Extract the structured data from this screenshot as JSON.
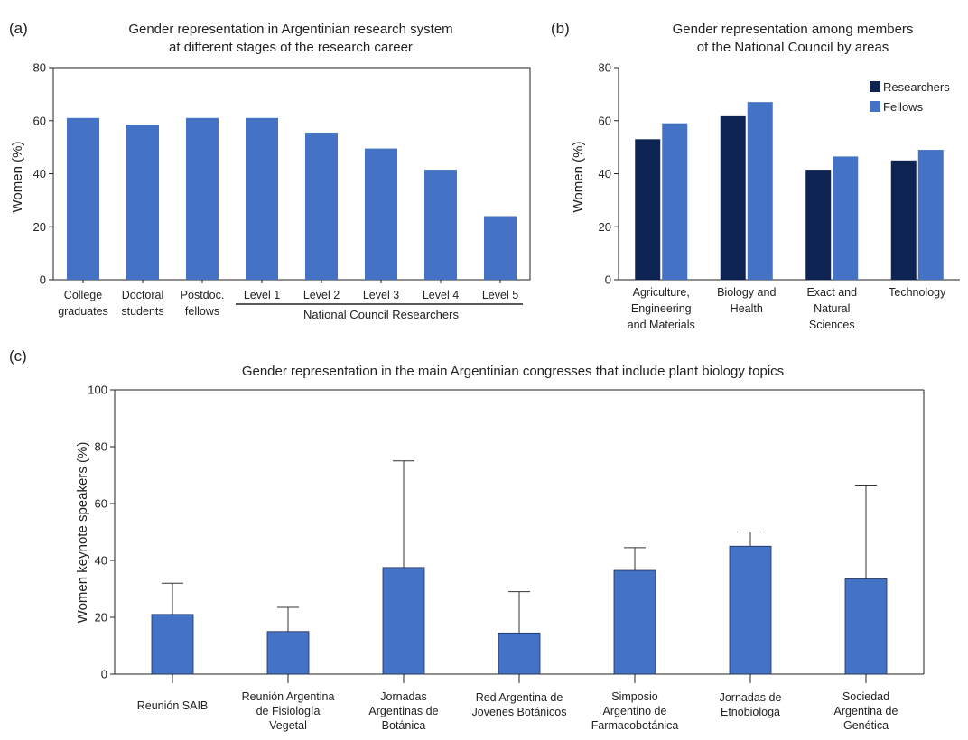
{
  "colors": {
    "bar": "#4472C4",
    "dark": "#0D2453",
    "axis": "#222222",
    "error": "#333333"
  },
  "chart_data": [
    {
      "panel_label": "(a)",
      "type": "bar",
      "title": [
        "Gender representation in Argentinian research system",
        "at different stages of the research career"
      ],
      "ylabel": "Women (%)",
      "ylim": [
        0,
        80
      ],
      "yticks": [
        0,
        20,
        40,
        60,
        80
      ],
      "categories": [
        [
          "College",
          "graduates"
        ],
        [
          "Doctoral",
          "students"
        ],
        [
          "Postdoc.",
          "fellows"
        ],
        [
          "Level 1"
        ],
        [
          "Level 2"
        ],
        [
          "Level 3"
        ],
        [
          "Level 4"
        ],
        [
          "Level 5"
        ]
      ],
      "values": [
        61,
        58.5,
        61,
        61,
        55.5,
        49.5,
        41.5,
        24
      ],
      "group_label": "National Council Researchers"
    },
    {
      "panel_label": "(b)",
      "type": "bar",
      "title": [
        "Gender representation among members",
        "of the National Council by areas"
      ],
      "ylabel": "Women (%)",
      "ylim": [
        0,
        80
      ],
      "yticks": [
        0,
        20,
        40,
        60,
        80
      ],
      "categories": [
        [
          "Agriculture,",
          "Engineering",
          "and Materials"
        ],
        [
          "Biology and",
          "Health"
        ],
        [
          "Exact and",
          "Natural",
          "Sciences"
        ],
        [
          "Technology"
        ]
      ],
      "series": [
        {
          "name": "Researchers",
          "values": [
            53,
            62,
            41.5,
            45
          ]
        },
        {
          "name": "Fellows",
          "values": [
            59,
            67,
            46.5,
            49
          ]
        }
      ],
      "legend_position": "top-right"
    },
    {
      "panel_label": "(c)",
      "type": "bar",
      "title": [
        "Gender representation in the main Argentinian congresses that include plant biology topics"
      ],
      "ylabel": "Women keynote speakers (%)",
      "ylim": [
        0,
        100
      ],
      "yticks": [
        0,
        20,
        40,
        60,
        80,
        100
      ],
      "categories": [
        [
          "Reunión SAIB"
        ],
        [
          "Reunión Argentina",
          "de Fisiología",
          "Vegetal"
        ],
        [
          "Jornadas",
          "Argentinas de",
          "Botánica"
        ],
        [
          "Red Argentina de",
          "Jovenes Botánicos"
        ],
        [
          "Simposio",
          "Argentino de",
          "Farmacobotánica"
        ],
        [
          "Jornadas de",
          "Etnobiologa"
        ],
        [
          "Sociedad",
          "Argentina de",
          "Genética"
        ]
      ],
      "values": [
        21,
        15,
        37.5,
        14.5,
        36.5,
        45,
        33.5
      ],
      "error_upper": [
        32,
        23.5,
        75,
        29,
        44.5,
        50,
        66.5
      ]
    }
  ]
}
